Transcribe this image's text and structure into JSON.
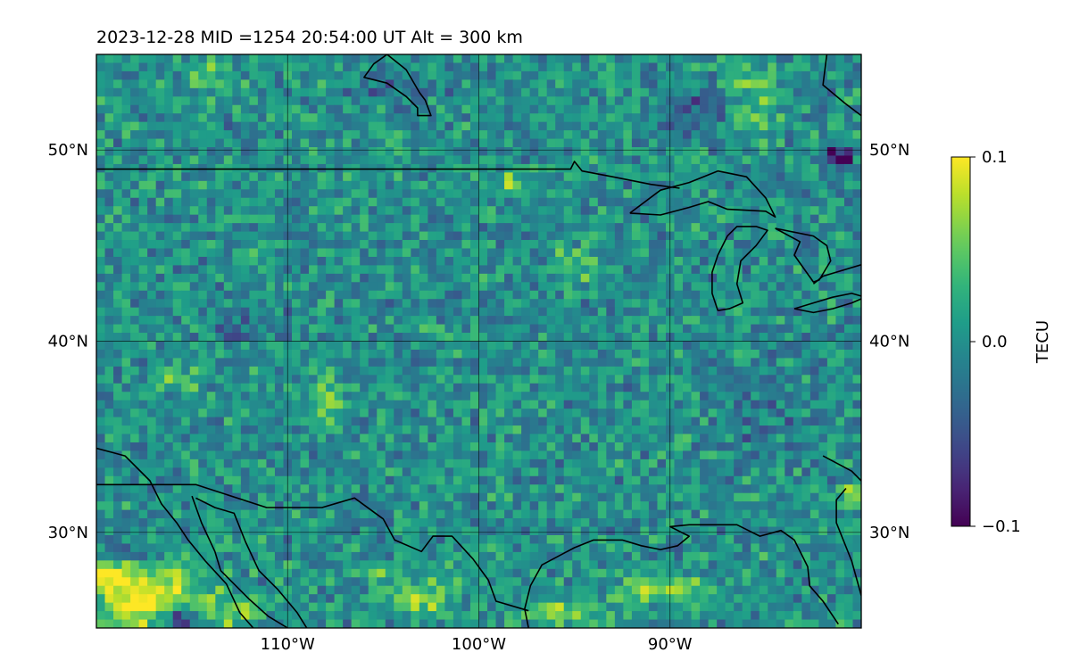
{
  "chart_data": {
    "type": "heatmap",
    "title": "2023-12-28  MID =1254    20:54:00  UT  Alt = 300 km",
    "projection": "PlateCarree map with coastlines and borders",
    "extent": {
      "lon": [
        -120,
        -80
      ],
      "lat": [
        25,
        55
      ]
    },
    "grid": true,
    "x_ticks": [
      {
        "value": -110,
        "label": "110°W"
      },
      {
        "value": -100,
        "label": "100°W"
      },
      {
        "value": -90,
        "label": "90°W"
      }
    ],
    "y_ticks": [
      {
        "value": 30,
        "label": "30°N"
      },
      {
        "value": 40,
        "label": "40°N"
      },
      {
        "value": 50,
        "label": "50°N"
      }
    ],
    "colormap": "viridis",
    "colorbar": {
      "label": "TECU",
      "range": [
        -0.1,
        0.1
      ],
      "ticks": [
        {
          "value": 0.1,
          "label": "0.1"
        },
        {
          "value": 0.0,
          "label": "0.0"
        },
        {
          "value": -0.1,
          "label": "−0.1"
        }
      ]
    },
    "background_value": 0.0,
    "features": [
      {
        "lon": -117.5,
        "lat": 26.6,
        "rx": 3.0,
        "ry": 1.8,
        "value": 0.11
      },
      {
        "lon": -115.6,
        "lat": 25.5,
        "rx": 1.2,
        "ry": 0.6,
        "value": -0.11
      },
      {
        "lon": -119.3,
        "lat": 27.8,
        "rx": 1.0,
        "ry": 0.6,
        "value": 0.09
      },
      {
        "lon": -113.0,
        "lat": 25.8,
        "rx": 1.5,
        "ry": 0.8,
        "value": 0.06
      },
      {
        "lon": -118.5,
        "lat": 28.8,
        "rx": 1.4,
        "ry": 0.5,
        "value": -0.05
      },
      {
        "lon": -103.0,
        "lat": 26.6,
        "rx": 2.0,
        "ry": 1.2,
        "value": 0.05
      },
      {
        "lon": -105.5,
        "lat": 28.0,
        "rx": 1.0,
        "ry": 0.5,
        "value": 0.06
      },
      {
        "lon": -90.5,
        "lat": 27.0,
        "rx": 3.0,
        "ry": 0.8,
        "value": 0.06
      },
      {
        "lon": -96.0,
        "lat": 25.7,
        "rx": 1.5,
        "ry": 0.6,
        "value": 0.07
      },
      {
        "lon": -85.5,
        "lat": 52.5,
        "rx": 1.2,
        "ry": 2.0,
        "value": 0.06
      },
      {
        "lon": -81.2,
        "lat": 49.6,
        "rx": 0.8,
        "ry": 0.6,
        "value": -0.11
      },
      {
        "lon": -98.4,
        "lat": 48.3,
        "rx": 0.4,
        "ry": 0.3,
        "value": 0.09
      },
      {
        "lon": -88.5,
        "lat": 52.0,
        "rx": 2.0,
        "ry": 1.0,
        "value": -0.05
      },
      {
        "lon": -114.0,
        "lat": 53.7,
        "rx": 1.5,
        "ry": 0.8,
        "value": 0.05
      },
      {
        "lon": -104.0,
        "lat": 53.5,
        "rx": 2.5,
        "ry": 0.6,
        "value": -0.04
      },
      {
        "lon": -108.0,
        "lat": 37.0,
        "rx": 0.6,
        "ry": 1.5,
        "value": 0.05
      },
      {
        "lon": -115.5,
        "lat": 38.0,
        "rx": 1.0,
        "ry": 0.6,
        "value": 0.06
      },
      {
        "lon": -95.0,
        "lat": 44.0,
        "rx": 1.0,
        "ry": 1.0,
        "value": 0.04
      },
      {
        "lon": -80.5,
        "lat": 32.0,
        "rx": 0.6,
        "ry": 0.6,
        "value": 0.07
      },
      {
        "lon": -112.0,
        "lat": 41.0,
        "rx": 2.0,
        "ry": 1.2,
        "value": -0.03
      },
      {
        "lon": -85.0,
        "lat": 36.0,
        "rx": 2.5,
        "ry": 2.0,
        "value": -0.025
      }
    ],
    "coastlines": [
      [
        [
          -120,
          34.4
        ],
        [
          -118.5,
          34.0
        ],
        [
          -117.2,
          32.7
        ],
        [
          -116.6,
          31.5
        ],
        [
          -115.8,
          30.5
        ],
        [
          -115.2,
          29.6
        ],
        [
          -114.3,
          28.5
        ],
        [
          -113.2,
          27.3
        ],
        [
          -112.5,
          25.8
        ],
        [
          -111.8,
          25.0
        ]
      ],
      [
        [
          -114.8,
          31.8
        ],
        [
          -113.8,
          31.3
        ],
        [
          -112.8,
          31.0
        ],
        [
          -112.2,
          29.5
        ],
        [
          -111.5,
          28.0
        ],
        [
          -110.5,
          27.0
        ],
        [
          -109.5,
          25.8
        ],
        [
          -109.0,
          25.0
        ]
      ],
      [
        [
          -115.0,
          31.9
        ],
        [
          -114.5,
          30.5
        ],
        [
          -113.8,
          29.0
        ],
        [
          -113.5,
          28.0
        ],
        [
          -113.0,
          27.5
        ],
        [
          -112.0,
          26.5
        ],
        [
          -111.0,
          25.6
        ],
        [
          -110.0,
          25.0
        ]
      ],
      [
        [
          -97.4,
          25.0
        ],
        [
          -97.6,
          26.0
        ],
        [
          -97.3,
          27.2
        ],
        [
          -96.7,
          28.3
        ],
        [
          -95.0,
          29.2
        ],
        [
          -94.0,
          29.6
        ],
        [
          -92.5,
          29.6
        ],
        [
          -91.5,
          29.3
        ],
        [
          -90.5,
          29.1
        ],
        [
          -89.6,
          29.3
        ],
        [
          -89.0,
          29.8
        ],
        [
          -90.0,
          30.3
        ],
        [
          -89.0,
          30.4
        ],
        [
          -87.8,
          30.4
        ],
        [
          -86.5,
          30.4
        ],
        [
          -85.3,
          29.8
        ],
        [
          -84.2,
          30.1
        ],
        [
          -83.5,
          29.6
        ],
        [
          -82.8,
          28.2
        ],
        [
          -82.7,
          27.2
        ],
        [
          -82.0,
          26.4
        ],
        [
          -81.2,
          25.2
        ]
      ],
      [
        [
          -80.0,
          26.7
        ],
        [
          -80.5,
          28.5
        ],
        [
          -81.3,
          30.5
        ],
        [
          -81.3,
          31.7
        ],
        [
          -80.8,
          32.3
        ]
      ],
      [
        [
          -82.0,
          34.0
        ],
        [
          -80.5,
          33.2
        ],
        [
          -80.0,
          32.7
        ]
      ]
    ],
    "borders": [
      [
        [
          -120,
          49.0
        ],
        [
          -95.2,
          49.0
        ],
        [
          -95.0,
          49.4
        ],
        [
          -94.6,
          48.9
        ],
        [
          -93.0,
          48.6
        ],
        [
          -91.0,
          48.2
        ],
        [
          -89.5,
          48.0
        ]
      ],
      [
        [
          -120,
          32.5
        ],
        [
          -117.1,
          32.5
        ],
        [
          -114.8,
          32.5
        ],
        [
          -111.1,
          31.3
        ],
        [
          -108.2,
          31.3
        ],
        [
          -106.5,
          31.8
        ],
        [
          -105.0,
          30.7
        ],
        [
          -104.4,
          29.6
        ],
        [
          -103.0,
          29.0
        ],
        [
          -102.4,
          29.8
        ],
        [
          -101.4,
          29.8
        ],
        [
          -100.3,
          28.6
        ],
        [
          -99.5,
          27.5
        ],
        [
          -99.1,
          26.4
        ],
        [
          -97.4,
          25.9
        ]
      ],
      [
        [
          -82.5,
          43.0
        ],
        [
          -82.0,
          43.4
        ],
        [
          -80.0,
          44.0
        ]
      ]
    ],
    "lakes": [
      [
        [
          -92.1,
          46.7
        ],
        [
          -90.5,
          46.6
        ],
        [
          -89.0,
          47.0
        ],
        [
          -88.0,
          47.3
        ],
        [
          -87.0,
          46.9
        ],
        [
          -85.0,
          46.8
        ],
        [
          -84.5,
          46.5
        ],
        [
          -85.0,
          47.5
        ],
        [
          -86.0,
          48.6
        ],
        [
          -87.5,
          48.9
        ],
        [
          -89.0,
          48.3
        ],
        [
          -90.5,
          47.9
        ],
        [
          -92.1,
          46.7
        ]
      ],
      [
        [
          -87.5,
          41.6
        ],
        [
          -87.8,
          42.5
        ],
        [
          -87.8,
          43.6
        ],
        [
          -87.5,
          44.5
        ],
        [
          -87.0,
          45.5
        ],
        [
          -86.5,
          46.0
        ],
        [
          -85.5,
          46.0
        ],
        [
          -84.9,
          45.8
        ],
        [
          -85.5,
          45.0
        ],
        [
          -86.3,
          44.2
        ],
        [
          -86.5,
          43.0
        ],
        [
          -86.2,
          42.0
        ],
        [
          -86.9,
          41.7
        ],
        [
          -87.5,
          41.6
        ]
      ],
      [
        [
          -84.5,
          45.9
        ],
        [
          -83.5,
          45.7
        ],
        [
          -82.5,
          45.5
        ],
        [
          -81.8,
          45.0
        ],
        [
          -81.6,
          44.2
        ],
        [
          -82.2,
          43.2
        ],
        [
          -82.5,
          43.1
        ],
        [
          -83.0,
          43.8
        ],
        [
          -83.5,
          44.5
        ],
        [
          -83.2,
          45.2
        ],
        [
          -84.5,
          45.9
        ]
      ],
      [
        [
          -83.5,
          41.7
        ],
        [
          -82.5,
          41.5
        ],
        [
          -81.5,
          41.7
        ],
        [
          -80.5,
          42.0
        ],
        [
          -79.8,
          42.3
        ],
        [
          -80.5,
          42.5
        ],
        [
          -81.5,
          42.3
        ],
        [
          -82.5,
          42.0
        ],
        [
          -83.5,
          41.7
        ]
      ],
      [
        [
          -79.8,
          43.2
        ],
        [
          -79.0,
          43.3
        ],
        [
          -78.0,
          43.4
        ],
        [
          -79.0,
          43.8
        ],
        [
          -79.8,
          43.2
        ]
      ],
      [
        [
          -104.8,
          55.0
        ],
        [
          -103.8,
          54.2
        ],
        [
          -103.1,
          53.0
        ],
        [
          -102.8,
          52.6
        ],
        [
          -102.5,
          51.8
        ],
        [
          -103.2,
          51.8
        ],
        [
          -103.2,
          52.2
        ],
        [
          -103.8,
          52.8
        ],
        [
          -104.8,
          53.5
        ],
        [
          -106.0,
          53.8
        ],
        [
          -105.5,
          54.5
        ],
        [
          -104.8,
          55.0
        ]
      ],
      [
        [
          -81.8,
          55.0
        ],
        [
          -82.0,
          53.4
        ],
        [
          -80.8,
          52.4
        ],
        [
          -80.0,
          51.8
        ]
      ]
    ]
  }
}
